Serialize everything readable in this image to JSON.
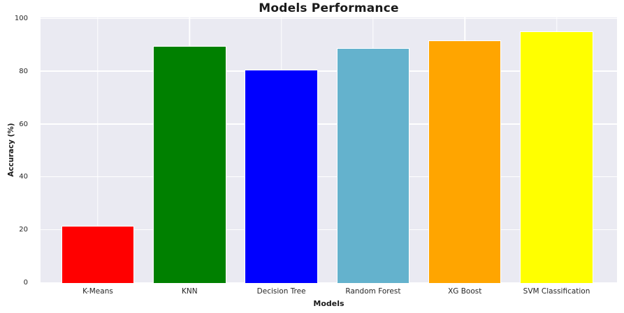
{
  "chart_data": {
    "type": "bar",
    "title": "Models Performance",
    "xlabel": "Models",
    "ylabel": "Accuracy (%)",
    "categories": [
      "K-Means",
      "KNN",
      "Decision Tree",
      "Random Forest",
      "XG Boost",
      "SVM Classification"
    ],
    "values": [
      21.6,
      89.6,
      80.6,
      89.0,
      91.9,
      95.1
    ],
    "bar_colors": [
      "#ff0000",
      "#008000",
      "#0000ff",
      "#64b2cd",
      "#ffa500",
      "#ffff00"
    ],
    "yticks": [
      0,
      20,
      40,
      60,
      80,
      100
    ],
    "ylim": [
      0,
      100.5
    ],
    "grid": true,
    "legend": false,
    "plot_background": "#eaeaf2",
    "figure_background": "#ffffff",
    "gridline_color": "#ffffff",
    "tick_text_color": "#262626",
    "title_color": "#1a1a1a"
  }
}
